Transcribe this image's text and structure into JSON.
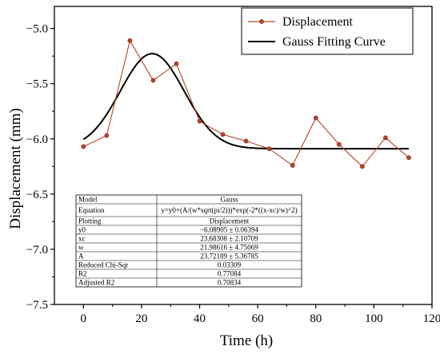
{
  "chart_data": {
    "type": "line",
    "xlabel": "Time (h)",
    "ylabel": "Displacement (mm)",
    "xlim": [
      -10,
      120
    ],
    "ylim": [
      -7.5,
      -4.8
    ],
    "xticks": [
      0,
      20,
      40,
      60,
      80,
      100,
      120
    ],
    "yticks": [
      -7.5,
      -7.0,
      -6.5,
      -6.0,
      -5.5,
      -5.0
    ],
    "xtick_labels": [
      "0",
      "20",
      "40",
      "60",
      "80",
      "100",
      "120"
    ],
    "ytick_labels": [
      "−7.5",
      "−7.0",
      "−6.5",
      "−6.0",
      "−5.5",
      "−5.0"
    ],
    "grid": false,
    "legend_position": "top-right",
    "series": [
      {
        "name": "Displacement",
        "style": "line-markers",
        "color": "#b5442c",
        "x": [
          0,
          8,
          16,
          24,
          32,
          40,
          48,
          56,
          64,
          72,
          80,
          88,
          96,
          104,
          112
        ],
        "y": [
          -6.07,
          -5.97,
          -5.11,
          -5.47,
          -5.32,
          -5.84,
          -5.96,
          -6.02,
          -6.09,
          -6.24,
          -5.81,
          -6.05,
          -6.25,
          -5.99,
          -6.17
        ]
      },
      {
        "name": "Gauss Fitting Curve",
        "style": "line",
        "color": "#000000",
        "model": "gauss",
        "params": {
          "y0": -6.08905,
          "xc": 23.68308,
          "w": 21.98616,
          "A": 23.72189
        },
        "x_range": [
          0,
          112
        ]
      }
    ],
    "fit_table": {
      "header": [
        "Model",
        "Gauss"
      ],
      "rows": [
        [
          "Equation",
          "y=y0+(A/(w*sqrt(pi/2)))*exp(-2*((x-xc)/w)^2)"
        ],
        [
          "Plotting",
          "Displacement"
        ],
        [
          "y0",
          "−6.08905 ± 0.06394"
        ],
        [
          "xc",
          "23.68308 ± 2.10709"
        ],
        [
          "w",
          "21.98616 ± 4.75069"
        ],
        [
          "A",
          "23.72189 ± 5.36785"
        ],
        [
          "Reduced Chi-Sqr",
          "0.03309"
        ],
        [
          "R2",
          "0.77084"
        ],
        [
          "Adjusted R2",
          "0.70834"
        ]
      ]
    }
  }
}
